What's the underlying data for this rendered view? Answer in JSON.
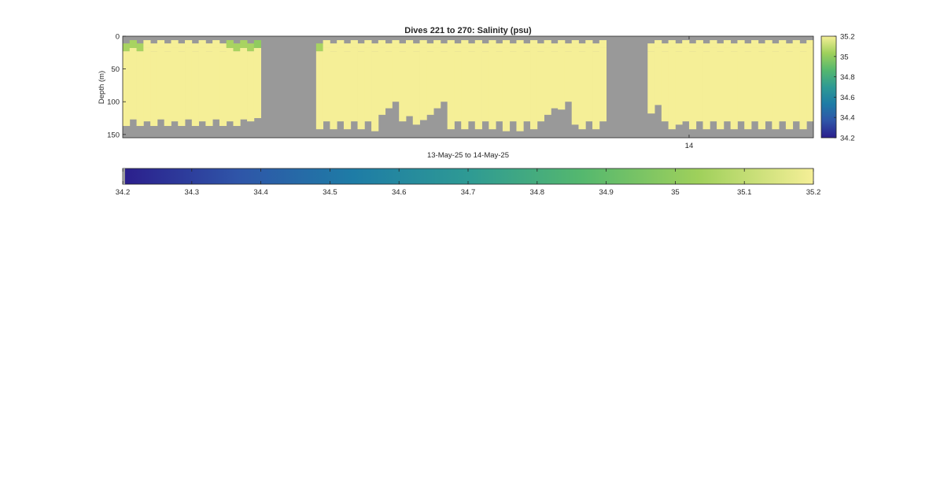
{
  "chart_data": {
    "type": "heatmap",
    "title": "Dives 221 to 270: Salinity (psu)",
    "xlabel": "13-May-25 to 14-May-25",
    "ylabel": "Depth (m)",
    "ylim": [
      0,
      155
    ],
    "y_reversed": true,
    "y_ticks": [
      "0",
      "50",
      "100",
      "150"
    ],
    "x_ticks": [
      "14"
    ],
    "missing_color": "#999999",
    "colormap": [
      "#2b1e8c",
      "#2f55a8",
      "#1e7ca6",
      "#2e9a94",
      "#55b86e",
      "#9fd05b",
      "#f5ef97"
    ],
    "clim": [
      34.2,
      35.2
    ],
    "colorbar_right_ticks": [
      "35.2",
      "35",
      "34.8",
      "34.6",
      "34.4",
      "34.2"
    ],
    "colorbar_bottom_ticks": [
      "34.2",
      "34.3",
      "34.4",
      "34.5",
      "34.6",
      "34.7",
      "34.8",
      "34.9",
      "35",
      "35.1",
      "35.2"
    ],
    "dive_count": 100,
    "gap_columns": [
      [
        20,
        27
      ],
      [
        70,
        75
      ]
    ],
    "base_salinity": 35.2,
    "surface_salinity": [
      35.05,
      35.05,
      35.05,
      35.2,
      35.2,
      35.2,
      35.2,
      35.2,
      35.2,
      35.2,
      35.2,
      35.2,
      35.2,
      35.2,
      35.2,
      35.05,
      35.05,
      35.05,
      35.05,
      35.0,
      35.2,
      35.2,
      35.2,
      35.2,
      35.2,
      35.2,
      35.2,
      35.2,
      35.05,
      35.2,
      35.2,
      35.2,
      35.2,
      35.2,
      35.2,
      35.2,
      35.2,
      35.2,
      35.2,
      35.2,
      35.2,
      35.2,
      35.2,
      35.2,
      35.2,
      35.2,
      35.2,
      35.2,
      35.2,
      35.2,
      35.2,
      35.2,
      35.2,
      35.2,
      35.2,
      35.2,
      35.2,
      35.2,
      35.2,
      35.2,
      35.2,
      35.2,
      35.2,
      35.2,
      35.2,
      35.2,
      35.2,
      35.2,
      35.2,
      35.2,
      35.2,
      35.2,
      35.2,
      35.2,
      35.2,
      35.2,
      35.2,
      35.2,
      35.2,
      35.2,
      35.2,
      35.2,
      35.2,
      35.2,
      35.2,
      35.2,
      35.2,
      35.2,
      35.2,
      35.2,
      35.2,
      35.2,
      35.2,
      35.2,
      35.2,
      35.2,
      35.2,
      35.2,
      35.2,
      35.2
    ],
    "top_depth": [
      17,
      12,
      17,
      12,
      17,
      12,
      17,
      12,
      17,
      12,
      17,
      12,
      17,
      12,
      17,
      12,
      17,
      12,
      17,
      12,
      0,
      0,
      0,
      0,
      0,
      0,
      0,
      0,
      17,
      12,
      17,
      12,
      17,
      12,
      17,
      12,
      17,
      12,
      17,
      12,
      17,
      12,
      17,
      12,
      17,
      12,
      17,
      12,
      17,
      12,
      17,
      12,
      17,
      12,
      17,
      12,
      17,
      12,
      17,
      12,
      17,
      12,
      17,
      12,
      17,
      12,
      17,
      12,
      17,
      12,
      0,
      0,
      0,
      0,
      0,
      0,
      17,
      12,
      17,
      12,
      17,
      12,
      17,
      12,
      17,
      12,
      17,
      12,
      17,
      12,
      17,
      12,
      17,
      12,
      17,
      12,
      17,
      12,
      17,
      12
    ],
    "bottom_depth": [
      137,
      127,
      137,
      130,
      137,
      127,
      137,
      130,
      137,
      127,
      137,
      130,
      137,
      127,
      137,
      130,
      137,
      127,
      130,
      125,
      0,
      0,
      0,
      0,
      0,
      0,
      0,
      0,
      142,
      130,
      142,
      130,
      142,
      130,
      142,
      130,
      145,
      120,
      110,
      100,
      130,
      122,
      135,
      128,
      120,
      110,
      100,
      142,
      130,
      142,
      130,
      142,
      130,
      142,
      130,
      145,
      130,
      145,
      130,
      142,
      130,
      120,
      110,
      112,
      100,
      135,
      142,
      130,
      142,
      130,
      0,
      0,
      0,
      0,
      0,
      0,
      118,
      105,
      130,
      142,
      135,
      130,
      142,
      130,
      142,
      130,
      142,
      130,
      142,
      130,
      142,
      130,
      142,
      130,
      142,
      130,
      142,
      130,
      142,
      130
    ]
  }
}
